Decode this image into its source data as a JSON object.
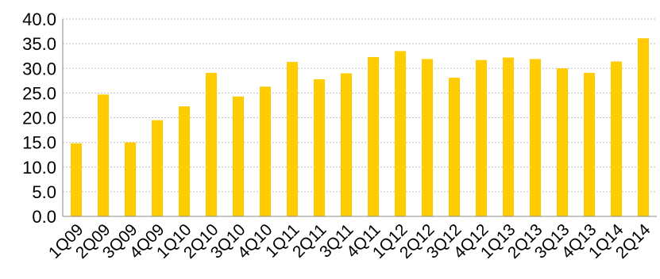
{
  "chart_data": {
    "type": "bar",
    "title": "",
    "xlabel": "",
    "ylabel": "",
    "categories": [
      "1Q09",
      "2Q09",
      "3Q09",
      "4Q09",
      "1Q10",
      "2Q10",
      "3Q10",
      "4Q10",
      "1Q11",
      "2Q11",
      "3Q11",
      "4Q11",
      "1Q12",
      "2Q12",
      "3Q12",
      "4Q12",
      "1Q13",
      "2Q13",
      "3Q13",
      "4Q13",
      "1Q14",
      "2Q14"
    ],
    "values": [
      14.8,
      24.7,
      15.0,
      19.5,
      22.3,
      29.1,
      24.3,
      26.3,
      31.3,
      27.8,
      29.0,
      32.3,
      33.5,
      31.9,
      28.1,
      31.7,
      32.2,
      31.9,
      30.0,
      29.1,
      31.4,
      36.1
    ],
    "ylim": [
      0,
      40
    ],
    "yticks": [
      "0.0",
      "5.0",
      "10.0",
      "15.0",
      "20.0",
      "25.0",
      "30.0",
      "35.0",
      "40.0"
    ],
    "grid": true,
    "bar_color": "#FFCC00"
  }
}
